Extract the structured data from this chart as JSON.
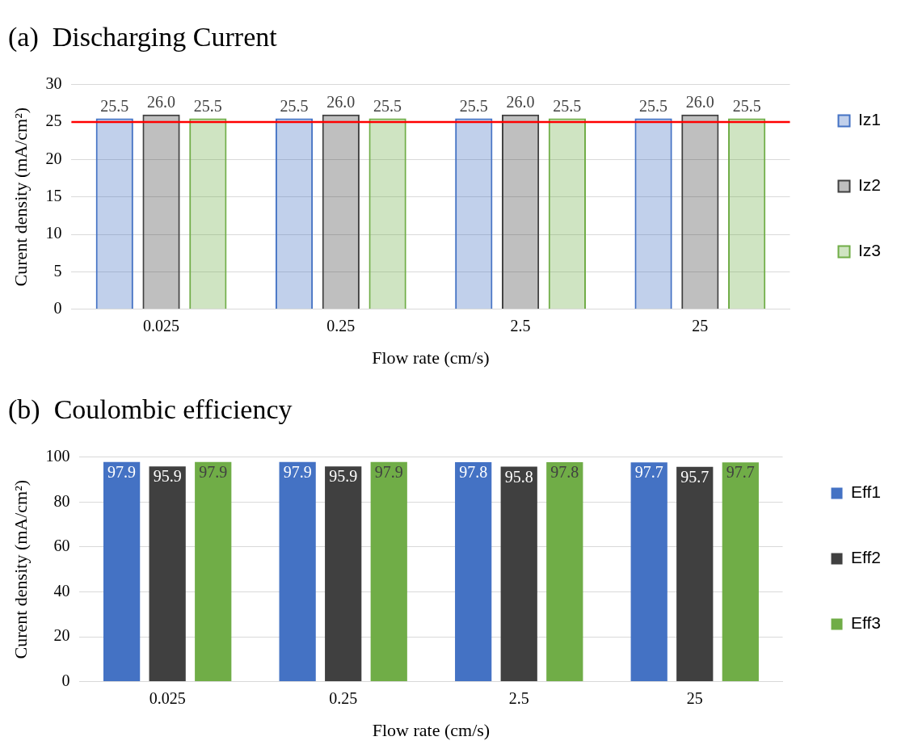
{
  "chart_data": [
    {
      "type": "bar",
      "title": "(a)  Discharging Current",
      "xlabel": "Flow rate (cm/s)",
      "ylabel": "Curent density (mA/cm²)",
      "categories": [
        "0.025",
        "0.25",
        "2.5",
        "25"
      ],
      "series": [
        {
          "name": "Iz1",
          "color": "#4472c4",
          "values": [
            25.5,
            25.5,
            25.5,
            25.5
          ],
          "value_labels": [
            "25.5",
            "25.5",
            "25.5",
            "25.5"
          ]
        },
        {
          "name": "Iz2",
          "color": "#404040",
          "values": [
            26.0,
            26.0,
            26.0,
            26.0
          ],
          "value_labels": [
            "26.0",
            "26.0",
            "26.0",
            "26.0"
          ]
        },
        {
          "name": "Iz3",
          "color": "#70ad47",
          "values": [
            25.5,
            25.5,
            25.5,
            25.5
          ],
          "value_labels": [
            "25.5",
            "25.5",
            "25.5",
            "25.5"
          ]
        }
      ],
      "ylim": [
        0,
        30
      ],
      "yticks": [
        0,
        5,
        10,
        15,
        20,
        25,
        30
      ],
      "grid": "y",
      "legend": "right",
      "ref_lines": [
        {
          "axis": "y",
          "value": 25,
          "color": "#ff0000"
        }
      ]
    },
    {
      "type": "bar",
      "title": "(b)  Coulombic efficiency",
      "xlabel": "Flow rate (cm/s)",
      "ylabel": "Curent density (mA/cm²)",
      "categories": [
        "0.025",
        "0.25",
        "2.5",
        "25"
      ],
      "series": [
        {
          "name": "Eff1",
          "color": "#4472c4",
          "values": [
            97.9,
            97.9,
            97.8,
            97.7
          ]
        },
        {
          "name": "Eff2",
          "color": "#404040",
          "values": [
            95.9,
            95.9,
            95.8,
            95.7
          ]
        },
        {
          "name": "Eff3",
          "color": "#70ad47",
          "values": [
            97.9,
            97.9,
            97.8,
            97.7
          ]
        }
      ],
      "data_labels": true,
      "ylim": [
        0,
        100
      ],
      "yticks": [
        0,
        20,
        40,
        60,
        80,
        100
      ],
      "grid": "y",
      "legend": "right"
    }
  ]
}
